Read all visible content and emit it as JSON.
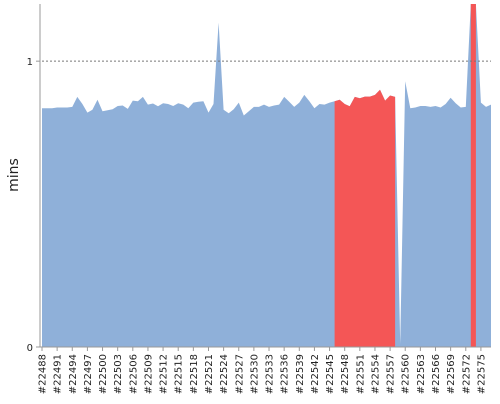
{
  "chart_data": {
    "type": "area",
    "title": "",
    "xlabel": "",
    "ylabel": "mins",
    "ylim": [
      0,
      1.2
    ],
    "yticks": [
      0,
      1
    ],
    "reference_line": 1,
    "grid": false,
    "colors": {
      "normal": "#8fb0d9",
      "highlight": "#f45656",
      "axis": "#999999",
      "refline": "#777777"
    },
    "x_tick_labels": [
      "#22488",
      "#22491",
      "#22494",
      "#22497",
      "#22500",
      "#22503",
      "#22506",
      "#22509",
      "#22512",
      "#22515",
      "#22518",
      "#22521",
      "#22524",
      "#22527",
      "#22530",
      "#22533",
      "#22536",
      "#22539",
      "#22542",
      "#22545",
      "#22548",
      "#22551",
      "#22554",
      "#22557",
      "#22560",
      "#22563",
      "#22566",
      "#22569",
      "#22572",
      "#22575"
    ],
    "x_tick_values": [
      22488,
      22491,
      22494,
      22497,
      22500,
      22503,
      22506,
      22509,
      22512,
      22515,
      22518,
      22521,
      22524,
      22527,
      22530,
      22533,
      22536,
      22539,
      22542,
      22545,
      22548,
      22551,
      22554,
      22557,
      22560,
      22563,
      22566,
      22569,
      22572,
      22575
    ],
    "x_range": [
      22488,
      22577
    ],
    "series": [
      {
        "x": [
          22488,
          22489,
          22490,
          22491,
          22492,
          22493,
          22494,
          22495,
          22496,
          22497,
          22498,
          22499,
          22500,
          22501,
          22502,
          22503,
          22504,
          22505,
          22506,
          22507,
          22508,
          22509,
          22510,
          22511,
          22512,
          22513,
          22514,
          22515,
          22516,
          22517,
          22518,
          22519,
          22520,
          22521,
          22522,
          22523,
          22524,
          22525,
          22526,
          22527,
          22528,
          22529,
          22530,
          22531,
          22532,
          22533,
          22534,
          22535,
          22536,
          22537,
          22538,
          22539,
          22540,
          22541,
          22542,
          22543,
          22544,
          22545,
          22546,
          22547,
          22548,
          22549,
          22550,
          22551,
          22552,
          22553,
          22554,
          22555,
          22556,
          22557,
          22558,
          22559,
          22560,
          22561,
          22562,
          22563,
          22564,
          22565,
          22566,
          22567,
          22568,
          22569,
          22570,
          22571,
          22572,
          22573,
          22574,
          22575,
          22576,
          22577
        ],
        "y": [
          0.835,
          0.835,
          0.835,
          0.838,
          0.838,
          0.838,
          0.84,
          0.875,
          0.85,
          0.82,
          0.83,
          0.865,
          0.825,
          0.828,
          0.832,
          0.843,
          0.845,
          0.833,
          0.862,
          0.86,
          0.875,
          0.848,
          0.852,
          0.842,
          0.853,
          0.85,
          0.843,
          0.853,
          0.848,
          0.835,
          0.855,
          0.858,
          0.86,
          0.82,
          0.85,
          1.135,
          0.83,
          0.818,
          0.832,
          0.855,
          0.81,
          0.825,
          0.84,
          0.84,
          0.848,
          0.84,
          0.845,
          0.848,
          0.875,
          0.858,
          0.84,
          0.855,
          0.882,
          0.86,
          0.835,
          0.85,
          0.848,
          0.855,
          0.86,
          0.865,
          0.85,
          0.842,
          0.875,
          0.87,
          0.876,
          0.876,
          0.882,
          0.9,
          0.862,
          0.88,
          0.875,
          0.01,
          0.93,
          0.835,
          0.838,
          0.843,
          0.843,
          0.84,
          0.843,
          0.838,
          0.85,
          0.872,
          0.853,
          0.838,
          0.84,
          1.2,
          1.2,
          0.855,
          0.84,
          0.848
        ],
        "highlight_ranges": [
          [
            22546,
            22558
          ],
          [
            22573,
            22574
          ]
        ]
      }
    ]
  }
}
